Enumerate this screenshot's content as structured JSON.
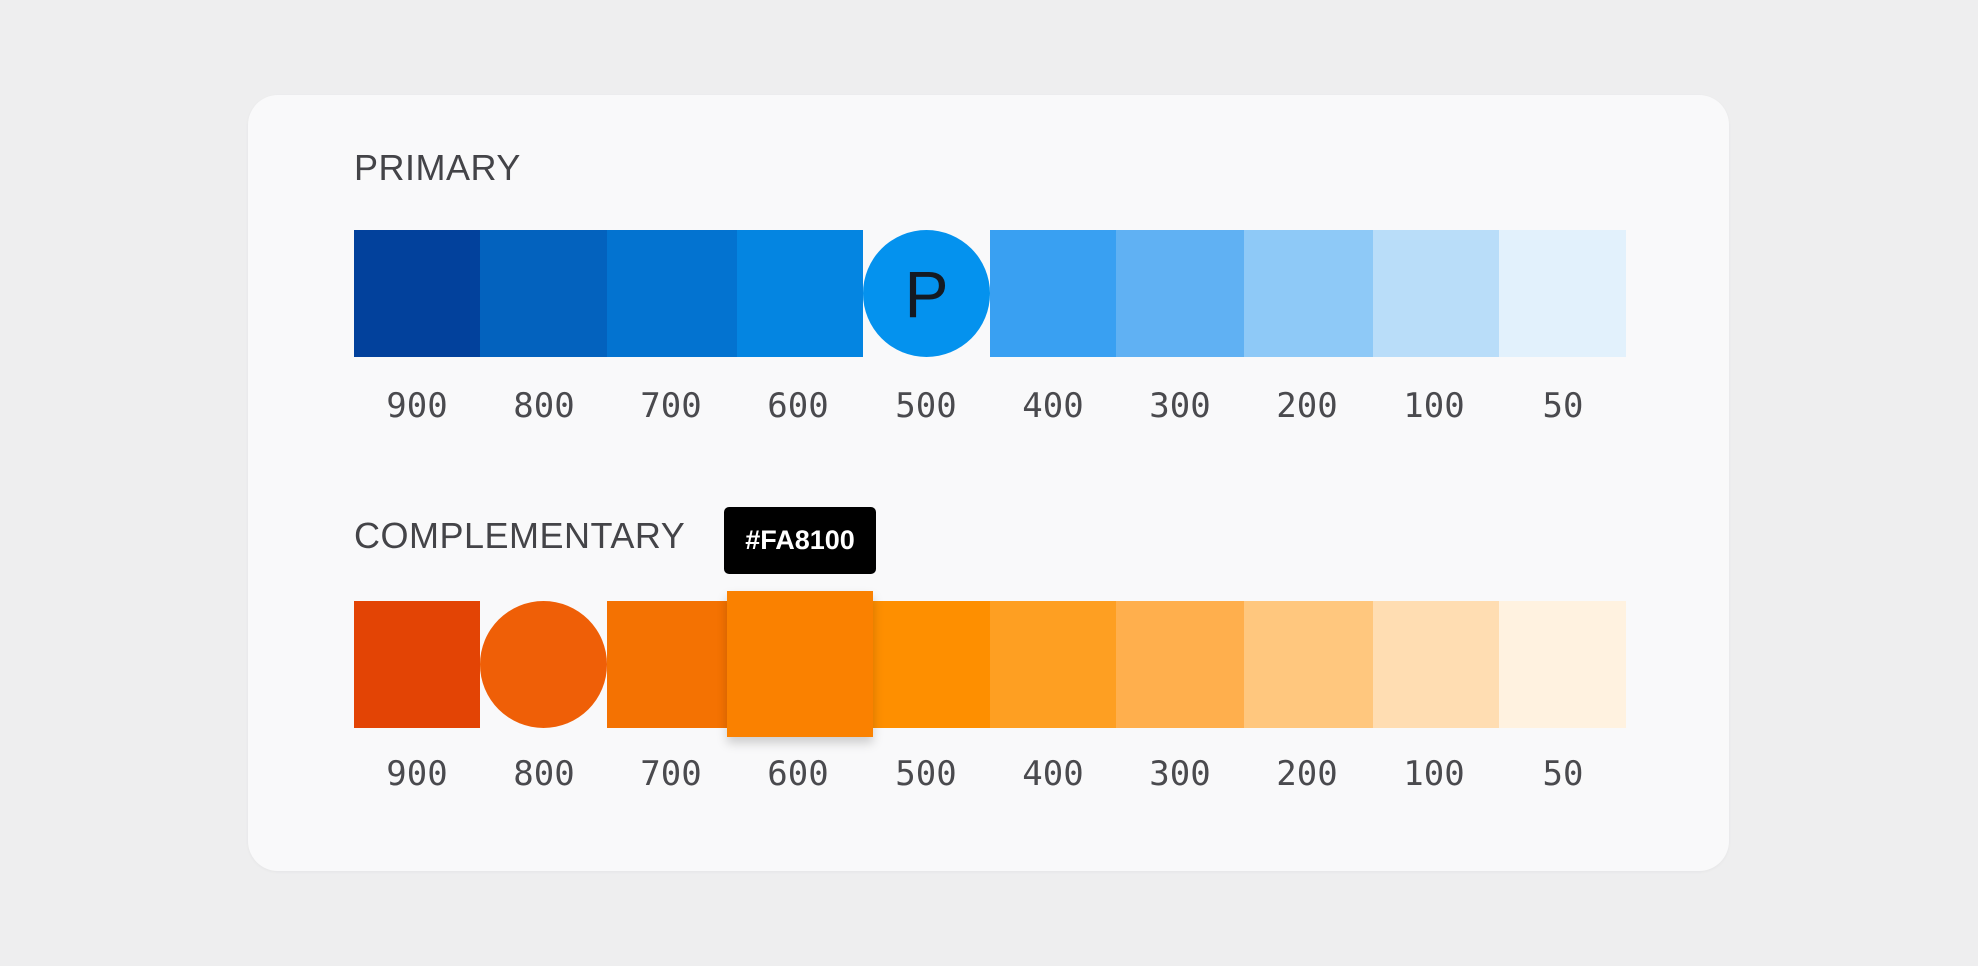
{
  "primary": {
    "title": "PRIMARY",
    "selected_letter": "P",
    "swatches": [
      {
        "shade": "900",
        "color": "#02419C"
      },
      {
        "shade": "800",
        "color": "#0362BE"
      },
      {
        "shade": "700",
        "color": "#0373D0"
      },
      {
        "shade": "600",
        "color": "#0485E1"
      },
      {
        "shade": "500",
        "color": "#0492EE",
        "selected": true
      },
      {
        "shade": "400",
        "color": "#39A0F2"
      },
      {
        "shade": "300",
        "color": "#60B1F3"
      },
      {
        "shade": "200",
        "color": "#8EC9F7"
      },
      {
        "shade": "100",
        "color": "#B9DDF9"
      },
      {
        "shade": "50",
        "color": "#E2F1FC"
      }
    ]
  },
  "complementary": {
    "title": "COMPLEMENTARY",
    "tooltip": "#FA8100",
    "swatches": [
      {
        "shade": "900",
        "color": "#E34405"
      },
      {
        "shade": "800",
        "color": "#EF5F07",
        "selected": true
      },
      {
        "shade": "700",
        "color": "#F47202"
      },
      {
        "shade": "600",
        "color": "#FA8100",
        "hovered": true
      },
      {
        "shade": "500",
        "color": "#FE8F00"
      },
      {
        "shade": "400",
        "color": "#FE9F22"
      },
      {
        "shade": "300",
        "color": "#FFAF4D"
      },
      {
        "shade": "200",
        "color": "#FFC77E"
      },
      {
        "shade": "100",
        "color": "#FFDDB2"
      },
      {
        "shade": "50",
        "color": "#FFF2E0"
      }
    ]
  }
}
